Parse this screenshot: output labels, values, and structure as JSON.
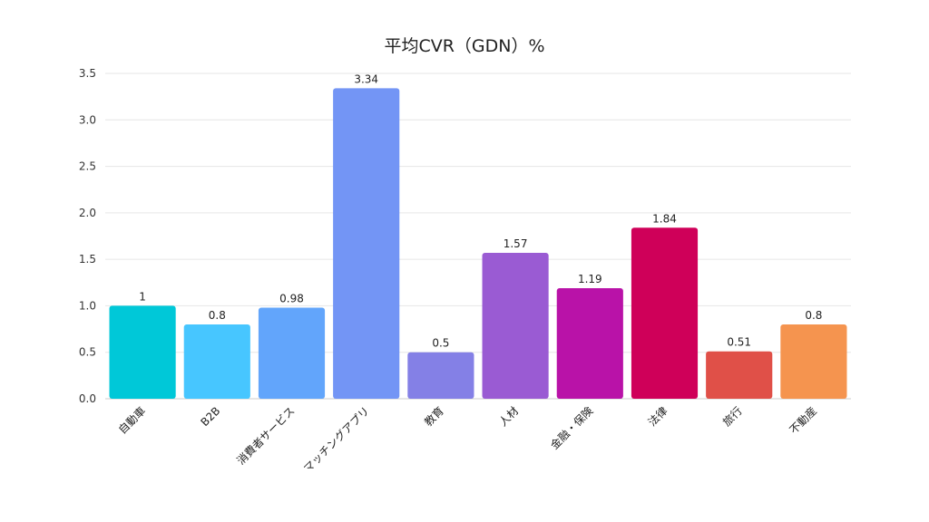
{
  "chart_data": {
    "type": "bar",
    "title": "平均CVR（GDN）%",
    "xlabel": "",
    "ylabel": "",
    "ylim": [
      0,
      3.5
    ],
    "yticks": [
      "0.0",
      "0.5",
      "1.0",
      "1.5",
      "2.0",
      "2.5",
      "3.0",
      "3.5"
    ],
    "grid": true,
    "legend": "none",
    "categories": [
      "自動車",
      "B2B",
      "消費者サービス",
      "マッチングアプリ",
      "教育",
      "人材",
      "金融・保険",
      "法律",
      "旅行",
      "不動産"
    ],
    "values": [
      1,
      0.8,
      0.98,
      3.34,
      0.5,
      1.57,
      1.19,
      1.84,
      0.51,
      0.8
    ],
    "value_labels": [
      "1",
      "0.8",
      "0.98",
      "3.34",
      "0.5",
      "1.57",
      "1.19",
      "1.84",
      "0.51",
      "0.8"
    ],
    "colors": [
      "#00c8d8",
      "#47c6ff",
      "#62a5fb",
      "#7395f5",
      "#8480e6",
      "#9a5bd3",
      "#b912a8",
      "#cf0059",
      "#e05048",
      "#f5944f"
    ]
  }
}
